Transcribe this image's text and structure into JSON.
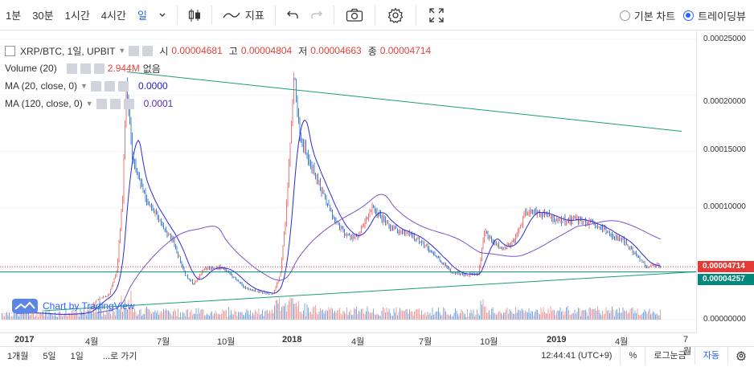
{
  "toolbar": {
    "intervals": [
      "1분",
      "30분",
      "1시간",
      "4시간",
      "일"
    ],
    "active_interval": "일",
    "indicators_label": "지표",
    "chart_options": [
      {
        "label": "기본 차트",
        "selected": false
      },
      {
        "label": "트레이딩뷰",
        "selected": true
      }
    ]
  },
  "legend": {
    "symbol": "XRP/BTC, 1일, UPBIT",
    "ohlc": [
      {
        "key": "시",
        "value": "0.00004681"
      },
      {
        "key": "고",
        "value": "0.00004804"
      },
      {
        "key": "저",
        "value": "0.00004663"
      },
      {
        "key": "종",
        "value": "0.00004714"
      }
    ],
    "volume": {
      "name": "Volume (20)",
      "value": "2.944M",
      "extra": "없음"
    },
    "ma20": {
      "name": "MA (20, close, 0)",
      "value": "0.0000"
    },
    "ma120": {
      "name": "MA (120, close, 0)",
      "value": "0.0001"
    }
  },
  "price_axis": {
    "ticks": [
      "0.00025000",
      "0.00020000",
      "0.00015000",
      "0.00010000",
      "0.00005000",
      "0.00000000"
    ],
    "last_price": "0.00004714",
    "hline_price": "0.00004257"
  },
  "time_axis": {
    "labels": [
      {
        "text": "2017",
        "bold": true
      },
      {
        "text": "4월",
        "bold": false
      },
      {
        "text": "7월",
        "bold": false
      },
      {
        "text": "10월",
        "bold": false
      },
      {
        "text": "2018",
        "bold": true
      },
      {
        "text": "4월",
        "bold": false
      },
      {
        "text": "7월",
        "bold": false
      },
      {
        "text": "10월",
        "bold": false
      },
      {
        "text": "2019",
        "bold": true
      },
      {
        "text": "4월",
        "bold": false
      },
      {
        "text": "7월",
        "bold": false
      }
    ]
  },
  "bottom_bar": {
    "ranges": [
      "1개월",
      "5일",
      "1일"
    ],
    "goto": "...로 가기",
    "clock": "12:44:41 (UTC+9)",
    "percent": "%",
    "log": "로그눈금",
    "auto": "자동"
  },
  "watermark": "Chart by TradingView",
  "colors": {
    "up": "#ef5350",
    "down": "#1565c0",
    "ma20": "#2a2ad8",
    "ma120": "#7b53c9",
    "trendline": "#1b9e77",
    "last_price_tag": "#e53935",
    "hline_tag": "#00897b",
    "accent": "#2962ff"
  }
}
